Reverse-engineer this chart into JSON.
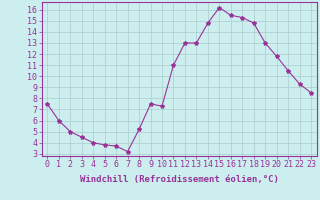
{
  "x": [
    0,
    1,
    2,
    3,
    4,
    5,
    6,
    7,
    8,
    9,
    10,
    11,
    12,
    13,
    14,
    15,
    16,
    17,
    18,
    19,
    20,
    21,
    22,
    23
  ],
  "y": [
    7.5,
    6.0,
    5.0,
    4.5,
    4.0,
    3.8,
    3.7,
    3.2,
    5.2,
    7.5,
    7.3,
    11.0,
    13.0,
    13.0,
    14.8,
    16.2,
    15.5,
    15.3,
    14.8,
    13.0,
    11.8,
    10.5,
    9.3,
    8.5
  ],
  "line_color": "#993399",
  "marker": "*",
  "marker_size": 3,
  "bg_color": "#cceeee",
  "grid_color": "#aacccc",
  "xlabel": "Windchill (Refroidissement éolien,°C)",
  "xlim": [
    -0.5,
    23.5
  ],
  "ylim": [
    2.8,
    16.7
  ],
  "yticks": [
    3,
    4,
    5,
    6,
    7,
    8,
    9,
    10,
    11,
    12,
    13,
    14,
    15,
    16
  ],
  "xticks": [
    0,
    1,
    2,
    3,
    4,
    5,
    6,
    7,
    8,
    9,
    10,
    11,
    12,
    13,
    14,
    15,
    16,
    17,
    18,
    19,
    20,
    21,
    22,
    23
  ],
  "tick_color": "#993399",
  "axis_color": "#993399",
  "label_fontsize": 6.5,
  "tick_fontsize": 6.0
}
